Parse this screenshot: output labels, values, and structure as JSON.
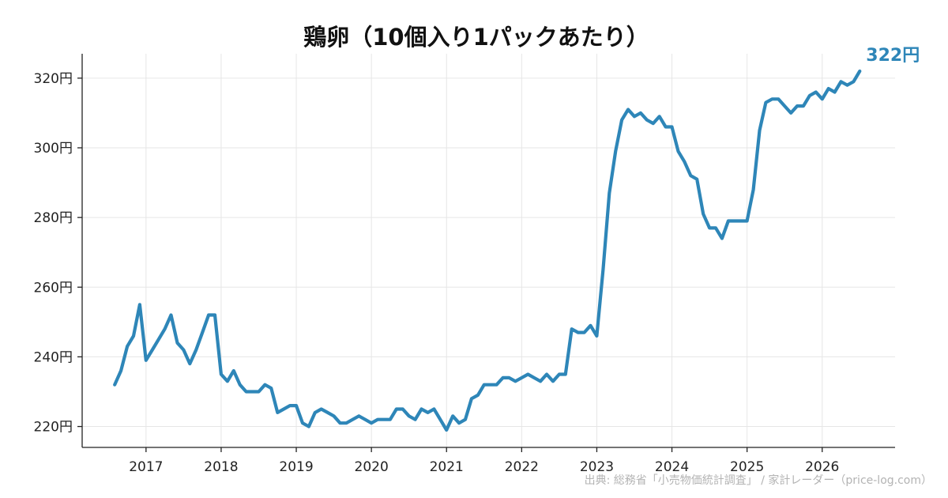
{
  "chart_data": {
    "type": "line",
    "title": "鶏卵（10個入り1パックあたり）",
    "xlabel": "",
    "ylabel": "",
    "x_ticks": [
      "2017",
      "2018",
      "2019",
      "2020",
      "2021",
      "2022",
      "2023",
      "2024",
      "2025",
      "2026"
    ],
    "y_ticks": [
      "220円",
      "240円",
      "260円",
      "280円",
      "300円",
      "320円"
    ],
    "y_tick_values": [
      220,
      240,
      260,
      280,
      300,
      320
    ],
    "xlim": [
      2016.15,
      2026.97
    ],
    "ylim": [
      214,
      327
    ],
    "grid": true,
    "color": "#2e86b8",
    "end_label": "322円",
    "source": "出典: 総務省「小売物価統計調査」 / 家計レーダー（price-log.com）",
    "series": [
      {
        "values": [
          [
            "2016-08",
            232
          ],
          [
            "2016-09",
            236
          ],
          [
            "2016-10",
            243
          ],
          [
            "2016-11",
            246
          ],
          [
            "2016-12",
            255
          ],
          [
            "2017-01",
            239
          ],
          [
            "2017-02",
            242
          ],
          [
            "2017-03",
            245
          ],
          [
            "2017-04",
            248
          ],
          [
            "2017-05",
            252
          ],
          [
            "2017-06",
            244
          ],
          [
            "2017-07",
            242
          ],
          [
            "2017-08",
            238
          ],
          [
            "2017-09",
            242
          ],
          [
            "2017-10",
            247
          ],
          [
            "2017-11",
            252
          ],
          [
            "2017-12",
            252
          ],
          [
            "2018-01",
            235
          ],
          [
            "2018-02",
            233
          ],
          [
            "2018-03",
            236
          ],
          [
            "2018-04",
            232
          ],
          [
            "2018-05",
            230
          ],
          [
            "2018-06",
            230
          ],
          [
            "2018-07",
            230
          ],
          [
            "2018-08",
            232
          ],
          [
            "2018-09",
            231
          ],
          [
            "2018-10",
            224
          ],
          [
            "2018-11",
            225
          ],
          [
            "2018-12",
            226
          ],
          [
            "2019-01",
            226
          ],
          [
            "2019-02",
            221
          ],
          [
            "2019-03",
            220
          ],
          [
            "2019-04",
            224
          ],
          [
            "2019-05",
            225
          ],
          [
            "2019-06",
            224
          ],
          [
            "2019-07",
            223
          ],
          [
            "2019-08",
            221
          ],
          [
            "2019-09",
            221
          ],
          [
            "2019-10",
            222
          ],
          [
            "2019-11",
            223
          ],
          [
            "2019-12",
            222
          ],
          [
            "2020-01",
            221
          ],
          [
            "2020-02",
            222
          ],
          [
            "2020-03",
            222
          ],
          [
            "2020-04",
            222
          ],
          [
            "2020-05",
            225
          ],
          [
            "2020-06",
            225
          ],
          [
            "2020-07",
            223
          ],
          [
            "2020-08",
            222
          ],
          [
            "2020-09",
            225
          ],
          [
            "2020-10",
            224
          ],
          [
            "2020-11",
            225
          ],
          [
            "2020-12",
            222
          ],
          [
            "2021-01",
            219
          ],
          [
            "2021-02",
            223
          ],
          [
            "2021-03",
            221
          ],
          [
            "2021-04",
            222
          ],
          [
            "2021-05",
            228
          ],
          [
            "2021-06",
            229
          ],
          [
            "2021-07",
            232
          ],
          [
            "2021-08",
            232
          ],
          [
            "2021-09",
            232
          ],
          [
            "2021-10",
            234
          ],
          [
            "2021-11",
            234
          ],
          [
            "2021-12",
            233
          ],
          [
            "2022-01",
            234
          ],
          [
            "2022-02",
            235
          ],
          [
            "2022-03",
            234
          ],
          [
            "2022-04",
            233
          ],
          [
            "2022-05",
            235
          ],
          [
            "2022-06",
            233
          ],
          [
            "2022-07",
            235
          ],
          [
            "2022-08",
            235
          ],
          [
            "2022-09",
            248
          ],
          [
            "2022-10",
            247
          ],
          [
            "2022-11",
            247
          ],
          [
            "2022-12",
            249
          ],
          [
            "2023-01",
            246
          ],
          [
            "2023-02",
            265
          ],
          [
            "2023-03",
            287
          ],
          [
            "2023-04",
            299
          ],
          [
            "2023-05",
            308
          ],
          [
            "2023-06",
            311
          ],
          [
            "2023-07",
            309
          ],
          [
            "2023-08",
            310
          ],
          [
            "2023-09",
            308
          ],
          [
            "2023-10",
            307
          ],
          [
            "2023-11",
            309
          ],
          [
            "2023-12",
            306
          ],
          [
            "2024-01",
            306
          ],
          [
            "2024-02",
            299
          ],
          [
            "2024-03",
            296
          ],
          [
            "2024-04",
            292
          ],
          [
            "2024-05",
            291
          ],
          [
            "2024-06",
            281
          ],
          [
            "2024-07",
            277
          ],
          [
            "2024-08",
            277
          ],
          [
            "2024-09",
            274
          ],
          [
            "2024-10",
            279
          ],
          [
            "2024-11",
            279
          ],
          [
            "2024-12",
            279
          ],
          [
            "2025-01",
            279
          ],
          [
            "2025-02",
            288
          ],
          [
            "2025-03",
            305
          ],
          [
            "2025-04",
            313
          ],
          [
            "2025-05",
            314
          ],
          [
            "2025-06",
            314
          ],
          [
            "2025-07",
            312
          ],
          [
            "2025-08",
            310
          ],
          [
            "2025-09",
            312
          ],
          [
            "2025-10",
            312
          ],
          [
            "2025-11",
            315
          ],
          [
            "2025-12",
            316
          ],
          [
            "2026-01",
            314
          ],
          [
            "2026-02",
            317
          ],
          [
            "2026-03",
            316
          ],
          [
            "2026-04",
            319
          ],
          [
            "2026-05",
            318
          ],
          [
            "2026-06",
            319
          ],
          [
            "2026-07",
            322
          ]
        ]
      }
    ]
  }
}
